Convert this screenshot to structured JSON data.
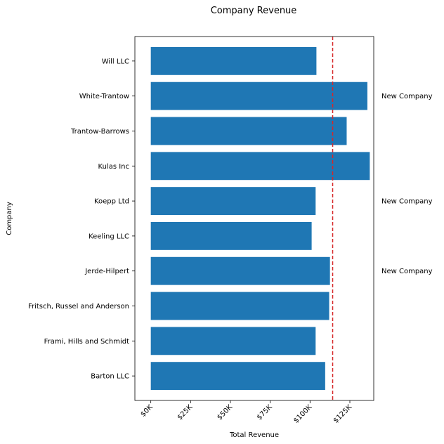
{
  "chart_data": {
    "type": "bar",
    "orientation": "horizontal",
    "title": "Company Revenue",
    "xlabel": "Total Revenue",
    "ylabel": "Company",
    "categories": [
      "Barton LLC",
      "Frami, Hills and Schmidt",
      "Fritsch, Russel and Anderson",
      "Jerde-Hilpert",
      "Keeling LLC",
      "Koepp Ltd",
      "Kulas Inc",
      "Trantow-Barrows",
      "White-Trantow",
      "Will LLC"
    ],
    "values": [
      109500,
      103500,
      112000,
      112500,
      101000,
      103500,
      137500,
      123000,
      136000,
      104000
    ],
    "xlim": [
      -10000,
      140000
    ],
    "xticks": [
      0,
      25000,
      50000,
      75000,
      100000,
      125000
    ],
    "xtick_labels": [
      "$0K",
      "$25K",
      "$50K",
      "$75K",
      "$100K",
      "$125K"
    ],
    "bar_color": "#1f77b4",
    "reference_line": {
      "value": 114200,
      "color": "#d62728",
      "style": "dashed"
    },
    "annotations": [
      {
        "category": "White-Trantow",
        "text": "New Company"
      },
      {
        "category": "Koepp Ltd",
        "text": "New Company"
      },
      {
        "category": "Jerde-Hilpert",
        "text": "New Company"
      }
    ],
    "grid": false,
    "legend": "none"
  }
}
